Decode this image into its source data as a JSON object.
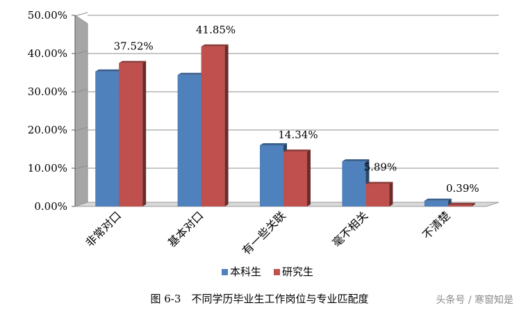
{
  "chart_data": {
    "type": "bar",
    "categories": [
      "非常对口",
      "基本对口",
      "有一些关联",
      "毫不相关",
      "不清楚"
    ],
    "series": [
      {
        "name": "本科生",
        "values": [
          35.3,
          34.4,
          16.0,
          11.8,
          1.5
        ],
        "color": "#4f81bd"
      },
      {
        "name": "研究生",
        "values": [
          37.52,
          41.85,
          14.34,
          5.89,
          0.39
        ],
        "color": "#c0504d"
      }
    ],
    "data_labels": [
      "37.52%",
      "41.85%",
      "14.34%",
      "5.89%",
      "0.39%"
    ],
    "y_ticks": [
      "0.00%",
      "10.00%",
      "20.00%",
      "30.00%",
      "40.00%",
      "50.00%"
    ],
    "ylim": [
      0,
      50
    ],
    "grid": true,
    "legend_position": "bottom"
  },
  "caption": "图 6-3　不同学历毕业生工作岗位与专业匹配度",
  "watermark": "头条号 / 寒窗知是"
}
